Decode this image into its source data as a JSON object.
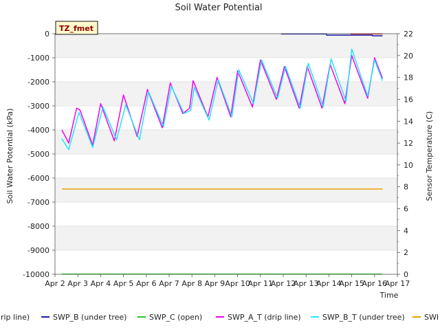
{
  "chart_data": {
    "type": "line",
    "title": "Soil Water Potential",
    "xlabel": "Time",
    "ylabel": "Soil Water Potential (kPa)",
    "y2label": "Sensor Temperature (C)",
    "badge": "TZ_fmet",
    "xlim": [
      2,
      17
    ],
    "ylim": [
      -10000,
      0
    ],
    "y2lim": [
      0,
      22
    ],
    "x_ticks": [
      {
        "v": 2,
        "label": "Apr 2"
      },
      {
        "v": 3,
        "label": "Apr 3"
      },
      {
        "v": 4,
        "label": "Apr 4"
      },
      {
        "v": 5,
        "label": "Apr 5"
      },
      {
        "v": 6,
        "label": "Apr 6"
      },
      {
        "v": 7,
        "label": "Apr 7"
      },
      {
        "v": 8,
        "label": "Apr 8"
      },
      {
        "v": 9,
        "label": "Apr 9"
      },
      {
        "v": 10,
        "label": "Apr 10"
      },
      {
        "v": 11,
        "label": "Apr 11"
      },
      {
        "v": 12,
        "label": "Apr 12"
      },
      {
        "v": 13,
        "label": "Apr 13"
      },
      {
        "v": 14,
        "label": "Apr 14"
      },
      {
        "v": 15,
        "label": "Apr 15"
      },
      {
        "v": 16,
        "label": "Apr 16"
      },
      {
        "v": 17,
        "label": "Apr 17"
      }
    ],
    "y_ticks": [
      {
        "v": 0,
        "label": "0"
      },
      {
        "v": -1000,
        "label": "-1000"
      },
      {
        "v": -2000,
        "label": "-2000"
      },
      {
        "v": -3000,
        "label": "-3000"
      },
      {
        "v": -4000,
        "label": "-4000"
      },
      {
        "v": -5000,
        "label": "-5000"
      },
      {
        "v": -6000,
        "label": "-6000"
      },
      {
        "v": -7000,
        "label": "-7000"
      },
      {
        "v": -8000,
        "label": "-8000"
      },
      {
        "v": -9000,
        "label": "-9000"
      },
      {
        "v": -10000,
        "label": "-10000"
      }
    ],
    "y2_ticks": [
      {
        "v": 0,
        "label": "0"
      },
      {
        "v": 2,
        "label": "2"
      },
      {
        "v": 4,
        "label": "4"
      },
      {
        "v": 6,
        "label": "6"
      },
      {
        "v": 8,
        "label": "8"
      },
      {
        "v": 10,
        "label": "10"
      },
      {
        "v": 12,
        "label": "12"
      },
      {
        "v": 14,
        "label": "14"
      },
      {
        "v": 16,
        "label": "16"
      },
      {
        "v": 18,
        "label": "18"
      },
      {
        "v": 20,
        "label": "20"
      },
      {
        "v": 22,
        "label": "22"
      }
    ],
    "series": [
      {
        "name": "SWP_A (drip line)",
        "legend_label": "drip line)",
        "axis": "left",
        "color": "#dd2222",
        "points": [
          [
            14.95,
            -10
          ],
          [
            16.35,
            -10
          ]
        ]
      },
      {
        "name": "SWP_B (under tree)",
        "legend_label": "SWP_B (under tree)",
        "axis": "left",
        "color": "#1a1aa8",
        "points": [
          [
            11.9,
            -10
          ],
          [
            13.9,
            -10
          ],
          [
            13.9,
            -60
          ],
          [
            15.9,
            -60
          ],
          [
            15.9,
            -90
          ],
          [
            16.35,
            -90
          ]
        ]
      },
      {
        "name": "SWP_C (open)",
        "legend_label": "SWP_C (open)",
        "axis": "left",
        "color": "#22cc22",
        "points": [
          [
            2.3,
            -9990
          ],
          [
            16.35,
            -9990
          ]
        ]
      },
      {
        "name": "SWP_A_T (drip line)",
        "legend_label": "SWP_A_T (drip line)",
        "axis": "right",
        "color": "#ee00ee",
        "points": [
          [
            2.3,
            13.2
          ],
          [
            2.6,
            12.0
          ],
          [
            2.95,
            15.2
          ],
          [
            3.1,
            15.0
          ],
          [
            3.65,
            11.8
          ],
          [
            4.0,
            15.6
          ],
          [
            4.6,
            12.2
          ],
          [
            5.0,
            16.4
          ],
          [
            5.6,
            12.6
          ],
          [
            6.05,
            16.9
          ],
          [
            6.7,
            13.4
          ],
          [
            7.05,
            17.5
          ],
          [
            7.6,
            14.7
          ],
          [
            7.9,
            15.2
          ],
          [
            8.05,
            17.7
          ],
          [
            8.7,
            14.4
          ],
          [
            9.1,
            18.0
          ],
          [
            9.7,
            14.4
          ],
          [
            10.0,
            18.6
          ],
          [
            10.65,
            15.3
          ],
          [
            11.0,
            19.6
          ],
          [
            11.7,
            16.0
          ],
          [
            12.05,
            19.0
          ],
          [
            12.7,
            15.2
          ],
          [
            13.05,
            19.0
          ],
          [
            13.7,
            15.2
          ],
          [
            14.05,
            19.2
          ],
          [
            14.7,
            15.6
          ],
          [
            15.0,
            20.0
          ],
          [
            15.7,
            16.1
          ],
          [
            16.0,
            19.8
          ],
          [
            16.35,
            17.9
          ]
        ]
      },
      {
        "name": "SWP_B_T (under tree)",
        "legend_label": "SWP_B_T (under tree)",
        "axis": "right",
        "color": "#22e5f5",
        "points": [
          [
            2.3,
            12.4
          ],
          [
            2.6,
            11.4
          ],
          [
            3.05,
            14.8
          ],
          [
            3.65,
            11.6
          ],
          [
            4.1,
            15.3
          ],
          [
            4.7,
            12.3
          ],
          [
            5.1,
            15.5
          ],
          [
            5.7,
            12.3
          ],
          [
            6.1,
            16.7
          ],
          [
            6.75,
            13.5
          ],
          [
            7.1,
            17.2
          ],
          [
            7.65,
            14.7
          ],
          [
            7.95,
            15.0
          ],
          [
            8.1,
            17.1
          ],
          [
            8.75,
            14.1
          ],
          [
            9.15,
            17.8
          ],
          [
            9.75,
            14.4
          ],
          [
            10.05,
            18.7
          ],
          [
            10.7,
            15.6
          ],
          [
            11.05,
            19.6
          ],
          [
            11.75,
            16.1
          ],
          [
            12.1,
            19.0
          ],
          [
            12.75,
            15.2
          ],
          [
            13.1,
            19.3
          ],
          [
            13.75,
            15.3
          ],
          [
            14.1,
            19.7
          ],
          [
            14.75,
            15.8
          ],
          [
            15.0,
            20.6
          ],
          [
            15.7,
            16.3
          ],
          [
            16.0,
            19.6
          ],
          [
            16.35,
            17.7
          ]
        ]
      },
      {
        "name": "SWP_C_T (open)",
        "legend_label": "SWI",
        "axis": "right",
        "color": "#e8a000",
        "points": [
          [
            2.3,
            7.8
          ],
          [
            16.35,
            7.8
          ]
        ]
      }
    ]
  }
}
